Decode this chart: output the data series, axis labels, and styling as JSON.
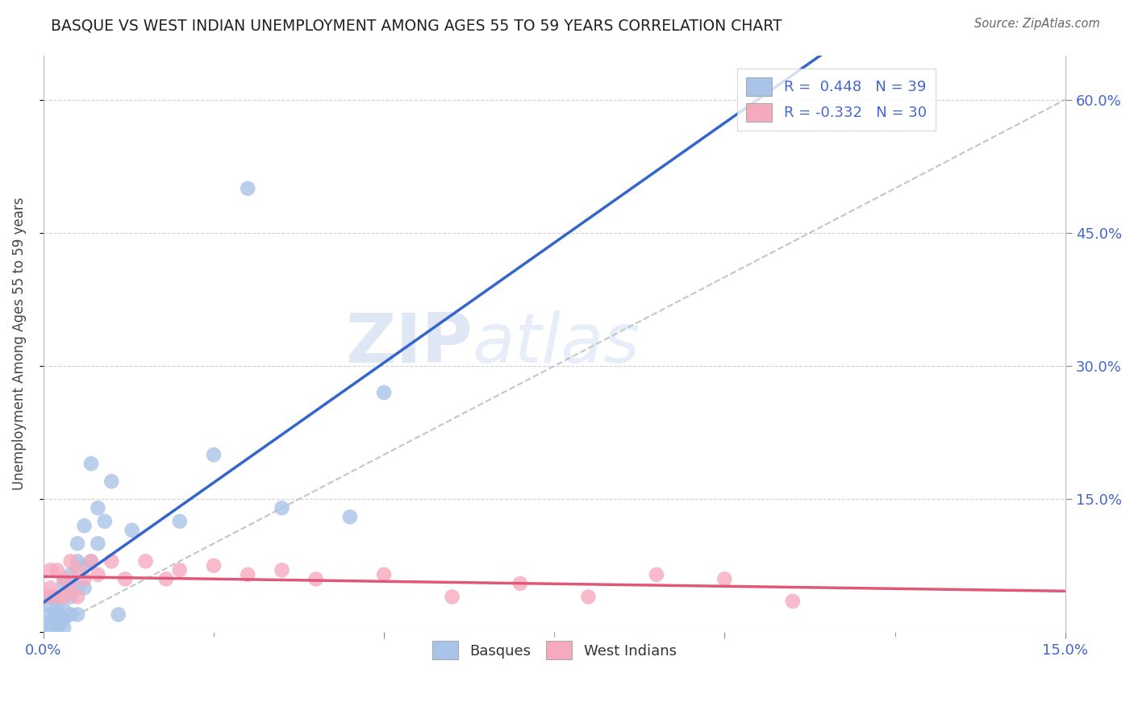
{
  "title": "BASQUE VS WEST INDIAN UNEMPLOYMENT AMONG AGES 55 TO 59 YEARS CORRELATION CHART",
  "source": "Source: ZipAtlas.com",
  "ylabel": "Unemployment Among Ages 55 to 59 years",
  "xlim": [
    0.0,
    0.15
  ],
  "ylim": [
    0.0,
    0.65
  ],
  "basque_R": 0.448,
  "basque_N": 39,
  "west_indian_R": -0.332,
  "west_indian_N": 30,
  "basque_color": "#a8c4e8",
  "basque_line_color": "#3366cc",
  "west_indian_color": "#f5aabe",
  "west_indian_line_color": "#e05878",
  "dashed_line_color": "#bbbbbb",
  "watermark_zip": "ZIP",
  "watermark_atlas": "atlas",
  "basque_x": [
    0.0005,
    0.001,
    0.001,
    0.001,
    0.001,
    0.0015,
    0.002,
    0.002,
    0.002,
    0.002,
    0.0025,
    0.003,
    0.003,
    0.003,
    0.003,
    0.004,
    0.004,
    0.004,
    0.005,
    0.005,
    0.005,
    0.005,
    0.006,
    0.006,
    0.006,
    0.007,
    0.007,
    0.008,
    0.008,
    0.009,
    0.01,
    0.011,
    0.013,
    0.02,
    0.025,
    0.03,
    0.035,
    0.045,
    0.05
  ],
  "basque_y": [
    0.01,
    0.005,
    0.02,
    0.03,
    0.04,
    0.015,
    0.005,
    0.015,
    0.025,
    0.035,
    0.01,
    0.005,
    0.015,
    0.025,
    0.055,
    0.02,
    0.04,
    0.065,
    0.02,
    0.05,
    0.08,
    0.1,
    0.05,
    0.075,
    0.12,
    0.08,
    0.19,
    0.1,
    0.14,
    0.125,
    0.17,
    0.02,
    0.115,
    0.125,
    0.2,
    0.5,
    0.14,
    0.13,
    0.27
  ],
  "west_indian_x": [
    0.0005,
    0.001,
    0.001,
    0.002,
    0.002,
    0.003,
    0.003,
    0.004,
    0.004,
    0.005,
    0.005,
    0.006,
    0.007,
    0.008,
    0.01,
    0.012,
    0.015,
    0.018,
    0.02,
    0.025,
    0.03,
    0.035,
    0.04,
    0.05,
    0.06,
    0.07,
    0.08,
    0.09,
    0.1,
    0.11
  ],
  "west_indian_y": [
    0.04,
    0.05,
    0.07,
    0.04,
    0.07,
    0.04,
    0.06,
    0.05,
    0.08,
    0.04,
    0.07,
    0.06,
    0.08,
    0.065,
    0.08,
    0.06,
    0.08,
    0.06,
    0.07,
    0.075,
    0.065,
    0.07,
    0.06,
    0.065,
    0.04,
    0.055,
    0.04,
    0.065,
    0.06,
    0.035
  ],
  "background_color": "#ffffff",
  "grid_color": "#cccccc",
  "tick_color": "#4466cc",
  "legend_top_labels": [
    "R =  0.448   N = 39",
    "R = -0.332   N = 30"
  ],
  "legend_bottom_labels": [
    "Basques",
    "West Indians"
  ]
}
